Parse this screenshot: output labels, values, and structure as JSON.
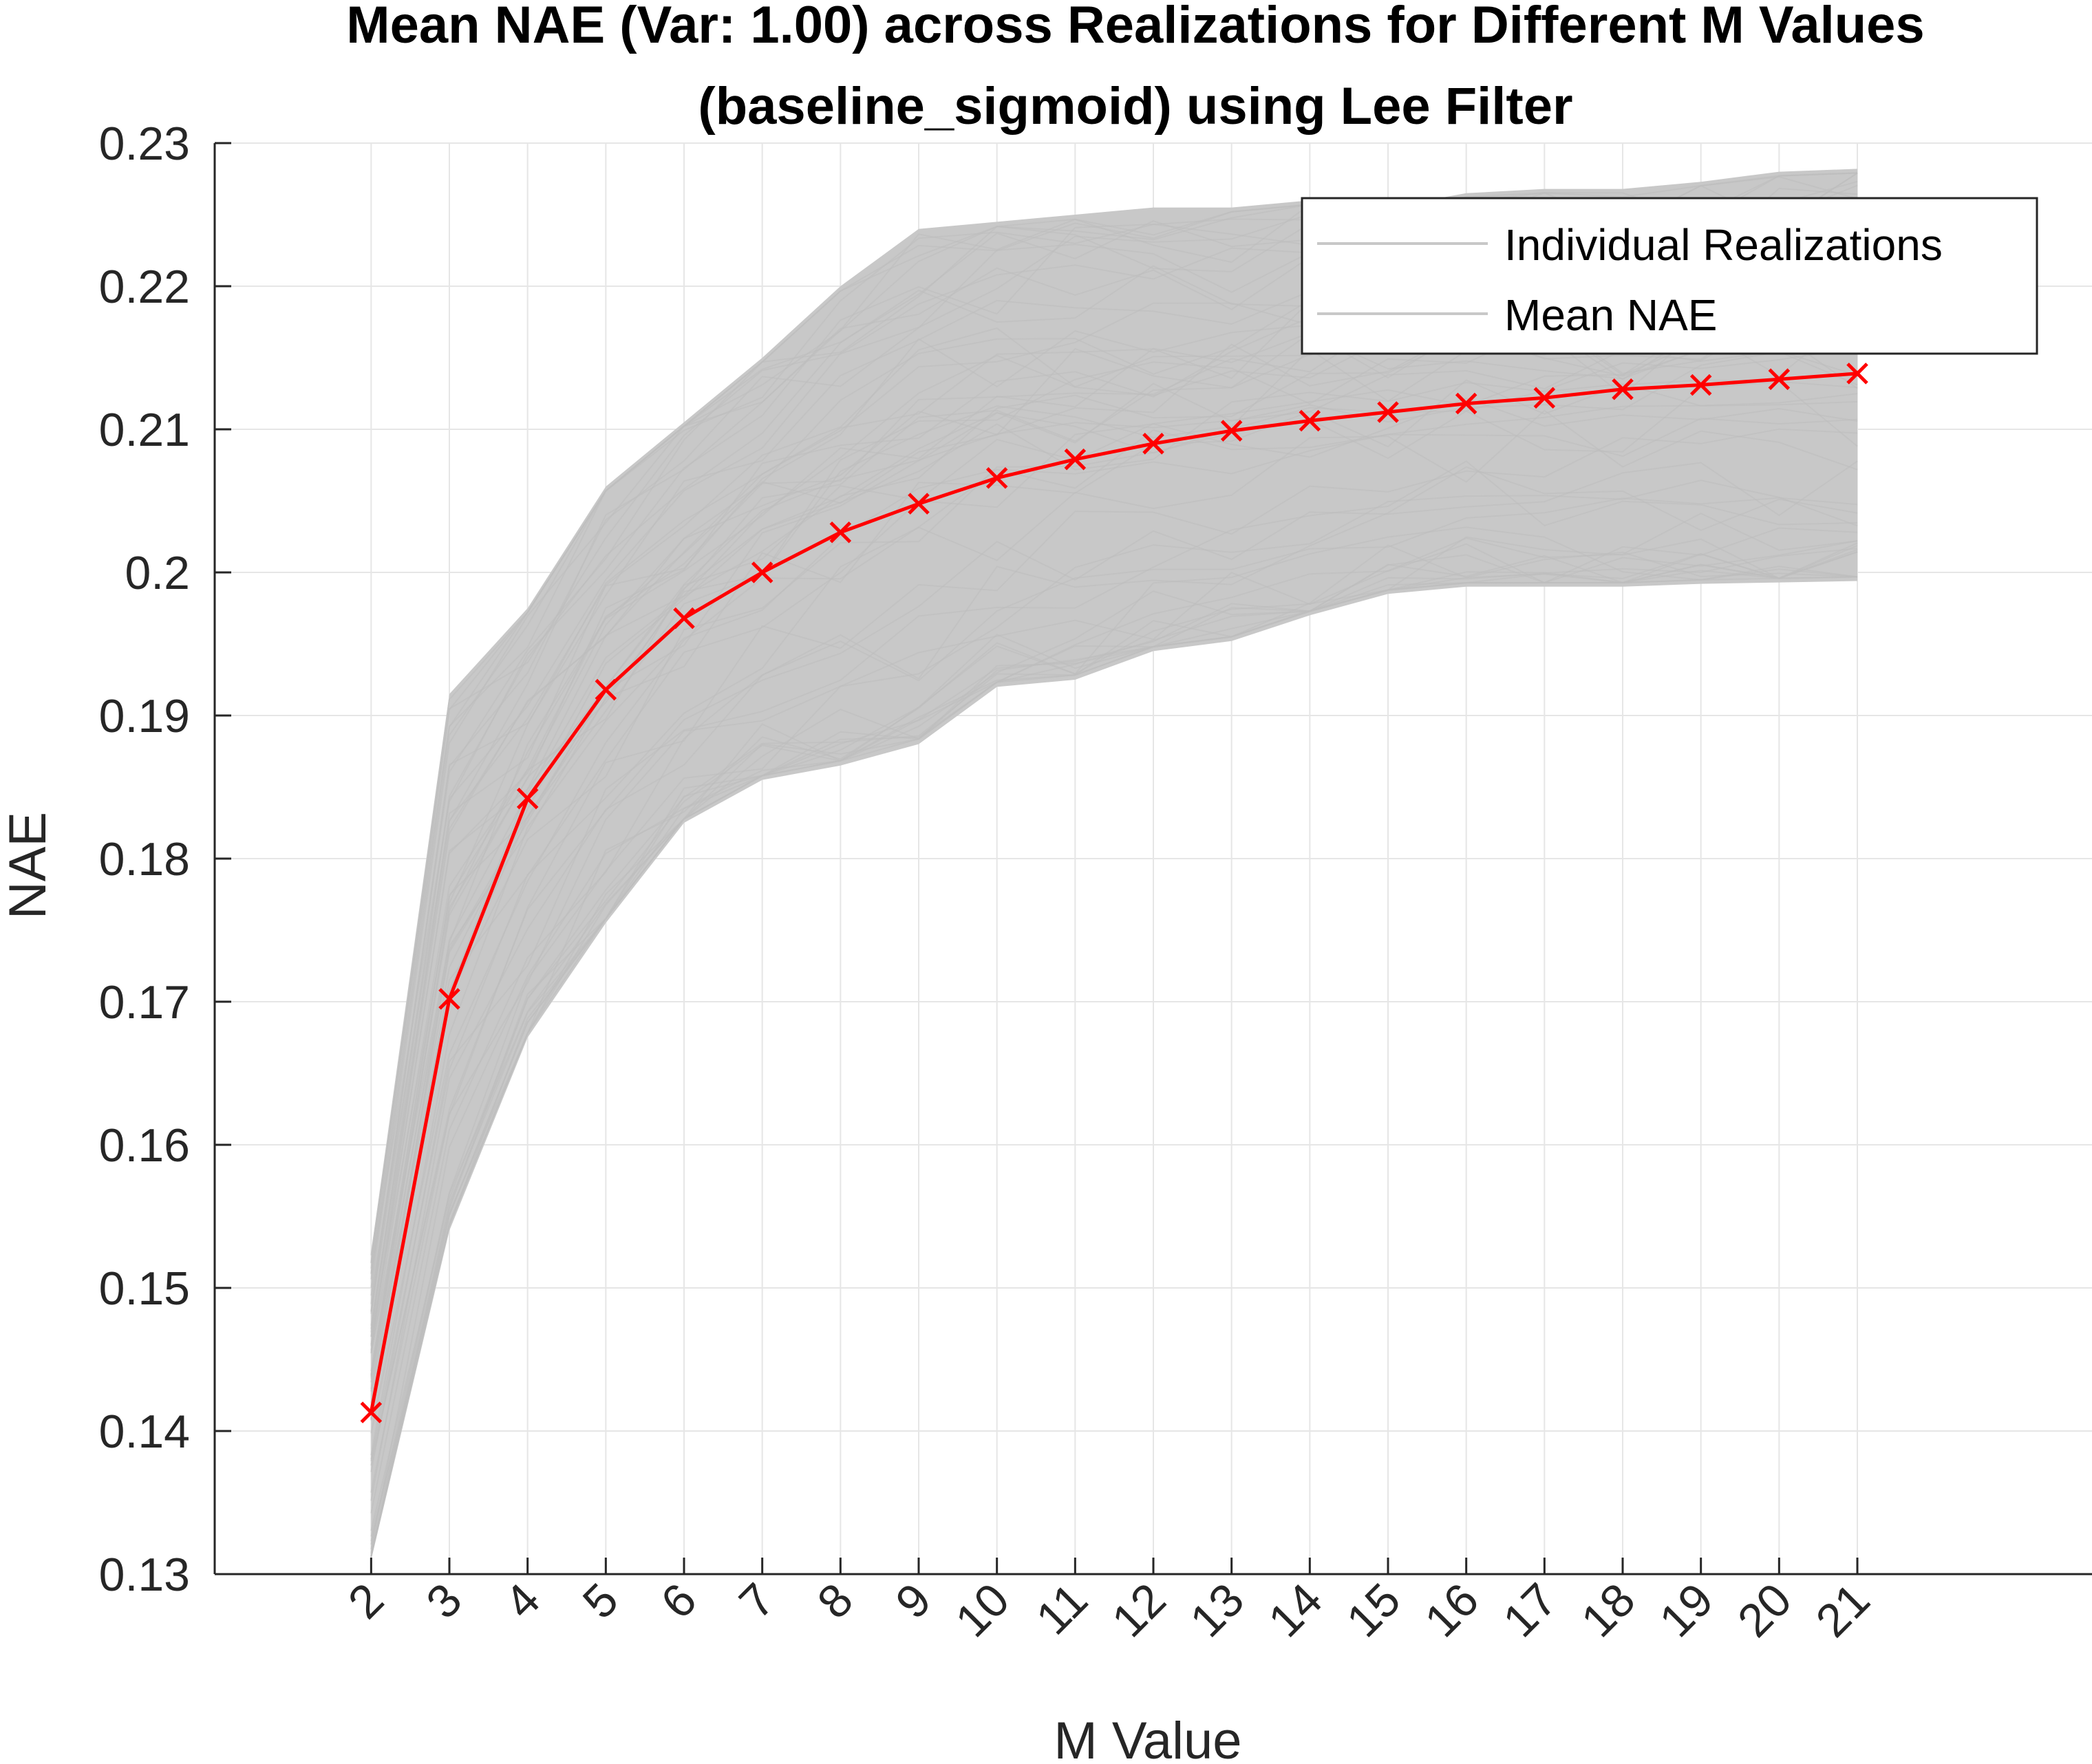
{
  "chart_data": {
    "type": "line",
    "title": "Mean NAE (Var: 1.00) across Realizations for Different M Values",
    "subtitle": "(baseline_sigmoid) using Lee Filter",
    "xlabel": "M Value",
    "ylabel": "NAE",
    "x": [
      2,
      3,
      4,
      5,
      6,
      7,
      8,
      9,
      10,
      11,
      12,
      13,
      14,
      15,
      16,
      17,
      18,
      19,
      20,
      21
    ],
    "x_tick_labels": [
      "2",
      "3",
      "4",
      "5",
      "6",
      "7",
      "8",
      "9",
      "10",
      "11",
      "12",
      "13",
      "14",
      "15",
      "16",
      "17",
      "18",
      "19",
      "20",
      "21"
    ],
    "xlim": [
      0,
      24
    ],
    "ylim": [
      0.13,
      0.23
    ],
    "y_tick_labels": [
      "0.13",
      "0.14",
      "0.15",
      "0.16",
      "0.17",
      "0.18",
      "0.19",
      "0.2",
      "0.21",
      "0.22",
      "0.23"
    ],
    "y_ticks": [
      0.13,
      0.14,
      0.15,
      0.16,
      0.17,
      0.18,
      0.19,
      0.2,
      0.21,
      0.22,
      0.23
    ],
    "grid": true,
    "legend_position": "top-right",
    "series": [
      {
        "name": "Individual Realizations",
        "color": "#c8c8c8",
        "band_upper": [
          0.1525,
          0.1915,
          0.1975,
          0.206,
          0.2105,
          0.215,
          0.22,
          0.224,
          0.2245,
          0.225,
          0.2255,
          0.2255,
          0.226,
          0.2255,
          0.2265,
          0.2268,
          0.2268,
          0.2273,
          0.228,
          0.2282
        ],
        "band_lower": [
          0.131,
          0.154,
          0.1675,
          0.1755,
          0.1825,
          0.1855,
          0.1865,
          0.188,
          0.192,
          0.1925,
          0.1945,
          0.1952,
          0.197,
          0.1985,
          0.199,
          0.199,
          0.199,
          0.1992,
          0.1993,
          0.1994
        ]
      },
      {
        "name": "Mean NAE",
        "color": "#ff0000",
        "marker": "x",
        "values": [
          0.1413,
          0.1702,
          0.1842,
          0.1918,
          0.1968,
          0.2,
          0.2028,
          0.2048,
          0.2066,
          0.2079,
          0.209,
          0.2099,
          0.2106,
          0.2112,
          0.2118,
          0.2122,
          0.2128,
          0.2131,
          0.2135,
          0.2139
        ]
      }
    ]
  }
}
